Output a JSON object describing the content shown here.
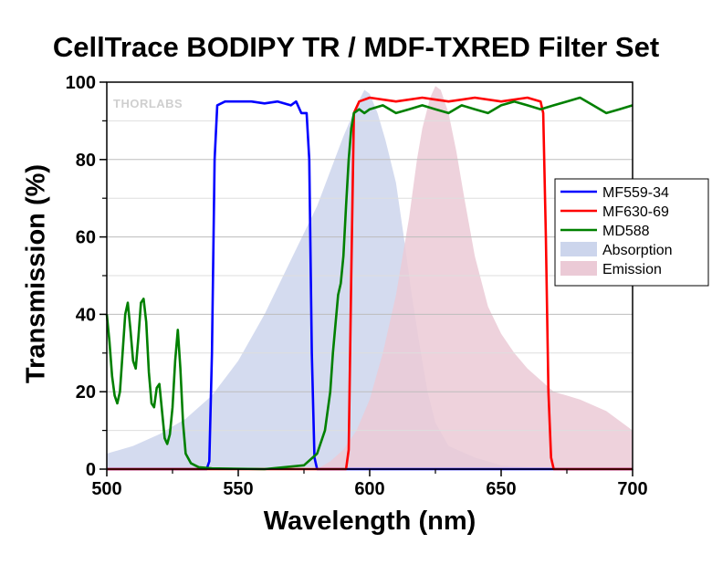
{
  "chart_data": {
    "type": "line",
    "title": "CellTrace BODIPY TR / MDF-TXRED Filter Set",
    "xlabel": "Wavelength (nm)",
    "ylabel": "Transmission (%)",
    "xlim": [
      500,
      700
    ],
    "ylim": [
      0,
      100
    ],
    "x_ticks": [
      500,
      550,
      600,
      650,
      700
    ],
    "y_ticks": [
      0,
      20,
      40,
      60,
      80,
      100
    ],
    "grid": "horizontal",
    "legend_position": "right",
    "watermark": "THORLABS",
    "series": [
      {
        "name": "MF559-34",
        "kind": "line",
        "color": "#0000ff",
        "points": [
          [
            500,
            0
          ],
          [
            538,
            0
          ],
          [
            539,
            2
          ],
          [
            540,
            30
          ],
          [
            541,
            80
          ],
          [
            542,
            94
          ],
          [
            545,
            95
          ],
          [
            550,
            95
          ],
          [
            555,
            95
          ],
          [
            560,
            94.5
          ],
          [
            565,
            95
          ],
          [
            570,
            94
          ],
          [
            572,
            95
          ],
          [
            574,
            92
          ],
          [
            576,
            92
          ],
          [
            577,
            80
          ],
          [
            578,
            30
          ],
          [
            579,
            3
          ],
          [
            580,
            0
          ],
          [
            700,
            0
          ]
        ]
      },
      {
        "name": "MF630-69",
        "kind": "line",
        "color": "#ff0000",
        "points": [
          [
            500,
            0
          ],
          [
            591,
            0
          ],
          [
            592,
            5
          ],
          [
            593,
            50
          ],
          [
            594,
            92
          ],
          [
            596,
            95
          ],
          [
            600,
            96
          ],
          [
            610,
            95
          ],
          [
            620,
            96
          ],
          [
            630,
            95
          ],
          [
            640,
            96
          ],
          [
            650,
            95
          ],
          [
            660,
            96
          ],
          [
            665,
            95
          ],
          [
            666,
            92
          ],
          [
            667,
            60
          ],
          [
            668,
            20
          ],
          [
            669,
            3
          ],
          [
            670,
            0
          ],
          [
            700,
            0
          ]
        ]
      },
      {
        "name": "MD588",
        "kind": "line",
        "color": "#008000",
        "points": [
          [
            500,
            40
          ],
          [
            501,
            33
          ],
          [
            502,
            24
          ],
          [
            503,
            19
          ],
          [
            504,
            17
          ],
          [
            505,
            20
          ],
          [
            506,
            30
          ],
          [
            507,
            40
          ],
          [
            508,
            43
          ],
          [
            509,
            36
          ],
          [
            510,
            28
          ],
          [
            511,
            26
          ],
          [
            512,
            34
          ],
          [
            513,
            43
          ],
          [
            514,
            44
          ],
          [
            515,
            38
          ],
          [
            516,
            25
          ],
          [
            517,
            17
          ],
          [
            518,
            16
          ],
          [
            519,
            21
          ],
          [
            520,
            22
          ],
          [
            521,
            15
          ],
          [
            522,
            8
          ],
          [
            523,
            6.5
          ],
          [
            524,
            9
          ],
          [
            525,
            16
          ],
          [
            526,
            28
          ],
          [
            527,
            36
          ],
          [
            528,
            26
          ],
          [
            529,
            12
          ],
          [
            530,
            4
          ],
          [
            532,
            1.5
          ],
          [
            535,
            0.5
          ],
          [
            540,
            0.2
          ],
          [
            560,
            0
          ],
          [
            575,
            1
          ],
          [
            580,
            4
          ],
          [
            583,
            10
          ],
          [
            585,
            20
          ],
          [
            586,
            30
          ],
          [
            588,
            45
          ],
          [
            589,
            48
          ],
          [
            590,
            55
          ],
          [
            591,
            68
          ],
          [
            592,
            80
          ],
          [
            593,
            88
          ],
          [
            594,
            92
          ],
          [
            596,
            93
          ],
          [
            598,
            92
          ],
          [
            600,
            93
          ],
          [
            605,
            94
          ],
          [
            610,
            92
          ],
          [
            615,
            93
          ],
          [
            620,
            94
          ],
          [
            625,
            93
          ],
          [
            630,
            92
          ],
          [
            635,
            94
          ],
          [
            640,
            93
          ],
          [
            645,
            92
          ],
          [
            650,
            94
          ],
          [
            655,
            95
          ],
          [
            660,
            94
          ],
          [
            665,
            93
          ],
          [
            670,
            94
          ],
          [
            675,
            95
          ],
          [
            680,
            96
          ],
          [
            685,
            94
          ],
          [
            690,
            92
          ],
          [
            695,
            93
          ],
          [
            700,
            94
          ]
        ]
      },
      {
        "name": "Absorption",
        "kind": "area",
        "color": "#ccd5ec",
        "points": [
          [
            500,
            4
          ],
          [
            510,
            6
          ],
          [
            520,
            9
          ],
          [
            530,
            13
          ],
          [
            540,
            19
          ],
          [
            550,
            28
          ],
          [
            560,
            40
          ],
          [
            570,
            54
          ],
          [
            580,
            68
          ],
          [
            585,
            77
          ],
          [
            590,
            86
          ],
          [
            595,
            94
          ],
          [
            598,
            98
          ],
          [
            600,
            97
          ],
          [
            603,
            92
          ],
          [
            606,
            85
          ],
          [
            610,
            74
          ],
          [
            613,
            60
          ],
          [
            616,
            45
          ],
          [
            619,
            32
          ],
          [
            622,
            20
          ],
          [
            625,
            12
          ],
          [
            630,
            6
          ],
          [
            640,
            3
          ],
          [
            650,
            1
          ],
          [
            660,
            0.5
          ],
          [
            700,
            0
          ]
        ]
      },
      {
        "name": "Emission",
        "kind": "area",
        "color": "#ebcad6",
        "points": [
          [
            580,
            0
          ],
          [
            585,
            2
          ],
          [
            590,
            5
          ],
          [
            595,
            10
          ],
          [
            600,
            18
          ],
          [
            605,
            30
          ],
          [
            610,
            45
          ],
          [
            615,
            65
          ],
          [
            618,
            80
          ],
          [
            620,
            88
          ],
          [
            623,
            96
          ],
          [
            625,
            99
          ],
          [
            627,
            98
          ],
          [
            630,
            92
          ],
          [
            633,
            82
          ],
          [
            636,
            70
          ],
          [
            640,
            55
          ],
          [
            645,
            42
          ],
          [
            650,
            35
          ],
          [
            655,
            30
          ],
          [
            660,
            26
          ],
          [
            665,
            23
          ],
          [
            670,
            20
          ],
          [
            675,
            19
          ],
          [
            680,
            18
          ],
          [
            690,
            15
          ],
          [
            700,
            10
          ]
        ]
      }
    ]
  }
}
